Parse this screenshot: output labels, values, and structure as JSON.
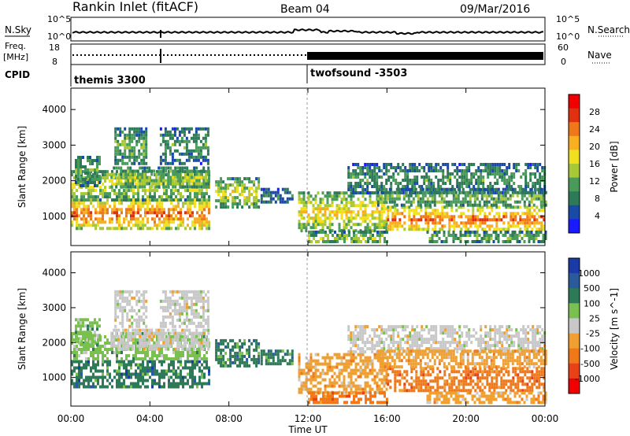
{
  "header": {
    "station": "Rankin Inlet (fitACF)",
    "beam": "Beam 04",
    "date": "09/Mar/2016"
  },
  "panels": {
    "nsky": {
      "label": "N.Sky",
      "left_ticks": [
        "10^5",
        "10^0"
      ],
      "right_label": "N.Search",
      "right_ticks": [
        "10^5",
        "10^0"
      ]
    },
    "freq": {
      "label_line1": "Freq.",
      "label_line2": "[MHz]",
      "left_ticks": [
        "18",
        "8"
      ],
      "right_label": "Nave",
      "right_ticks": [
        "60",
        "0"
      ]
    },
    "cpid": {
      "label": "CPID",
      "modes": [
        {
          "name": "themis 3300",
          "start_hour": 0
        },
        {
          "name": "twofsound -3503",
          "start_hour": 12
        }
      ]
    }
  },
  "chart_data": [
    {
      "type": "heatmap",
      "name": "power",
      "ylabel": "Slant Range [km]",
      "y_ticks": [
        1000,
        2000,
        3000,
        4000
      ],
      "ylim": [
        180,
        4600
      ],
      "xlim": [
        0,
        24
      ],
      "x_unit": "hours UT",
      "colorbar": {
        "label": "Power [dB]",
        "ticks": [
          "28",
          "24",
          "20",
          "16",
          "12",
          "8",
          "4"
        ],
        "range": [
          0,
          30
        ],
        "colors": [
          "#1a1aff",
          "#1a4aa8",
          "#2e7a58",
          "#4a9a5a",
          "#a8c838",
          "#f0e020",
          "#f8b020",
          "#f07818",
          "#e03010",
          "#f00000"
        ]
      }
    },
    {
      "type": "heatmap",
      "name": "velocity",
      "ylabel": "Slant Range [km]",
      "y_ticks": [
        1000,
        2000,
        3000,
        4000
      ],
      "ylim": [
        180,
        4600
      ],
      "xlim": [
        0,
        24
      ],
      "x_unit": "hours UT",
      "colorbar": {
        "label": "Velocity [m s^-1]",
        "ticks": [
          "1000",
          "500",
          "100",
          "25",
          "-25",
          "-100",
          "-500",
          "-1000"
        ],
        "colors": [
          "#1a3aa8",
          "#2a5a9a",
          "#2e7a58",
          "#7ac050",
          "#c8c8c8",
          "#f0a030",
          "#f07818",
          "#e84018",
          "#f00000"
        ]
      }
    }
  ],
  "xaxis": {
    "ticks": [
      "00:00",
      "04:00",
      "08:00",
      "12:00",
      "16:00",
      "20:00",
      "00:00"
    ],
    "tick_hours": [
      0,
      4,
      8,
      12,
      16,
      20,
      24
    ],
    "label": "Time UT"
  }
}
